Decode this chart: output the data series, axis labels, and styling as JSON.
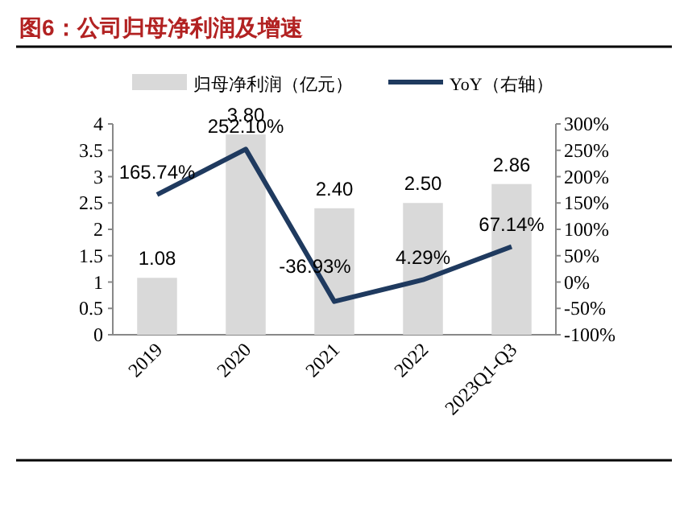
{
  "chart_data": {
    "type": "bar",
    "title": "图6：公司归母净利润及增速",
    "categories": [
      "2019",
      "2020",
      "2021",
      "2022",
      "2023Q1-Q3"
    ],
    "series": [
      {
        "name": "归母净利润（亿元）",
        "color": "#d9d9d9",
        "values": [
          1.08,
          3.8,
          2.4,
          2.5,
          2.86
        ],
        "value_labels": [
          "1.08",
          "3.80",
          "2.40",
          "2.50",
          "2.86"
        ]
      },
      {
        "name": "YoY（右轴）",
        "type": "line",
        "axis": "y2",
        "color": "#1f3a5f",
        "values": [
          165.74,
          252.1,
          -36.93,
          4.29,
          67.14
        ],
        "value_labels": [
          "165.74%",
          "252.10%",
          "-36.93%",
          "4.29%",
          "67.14%"
        ]
      }
    ],
    "ylim": [
      0,
      4
    ],
    "yticks": [
      0,
      {
        "value": 0.5,
        "label": "0.5"
      },
      1,
      {
        "value": 1.5,
        "label": "1.5"
      },
      2,
      {
        "value": 2.5,
        "label": "2.5"
      },
      3,
      {
        "value": 3.5,
        "label": "3.5"
      },
      4
    ],
    "y2lim": [
      -100,
      300
    ],
    "y2ticks": [
      {
        "value": -100,
        "label": "-100%"
      },
      {
        "value": -50,
        "label": "-50%"
      },
      {
        "value": 0,
        "label": "0%"
      },
      {
        "value": 50,
        "label": "50%"
      },
      {
        "value": 100,
        "label": "100%"
      },
      {
        "value": 150,
        "label": "150%"
      },
      {
        "value": 200,
        "label": "200%"
      },
      {
        "value": 250,
        "label": "250%"
      },
      {
        "value": 300,
        "label": "300%"
      }
    ],
    "legend": "top",
    "grid": false
  }
}
